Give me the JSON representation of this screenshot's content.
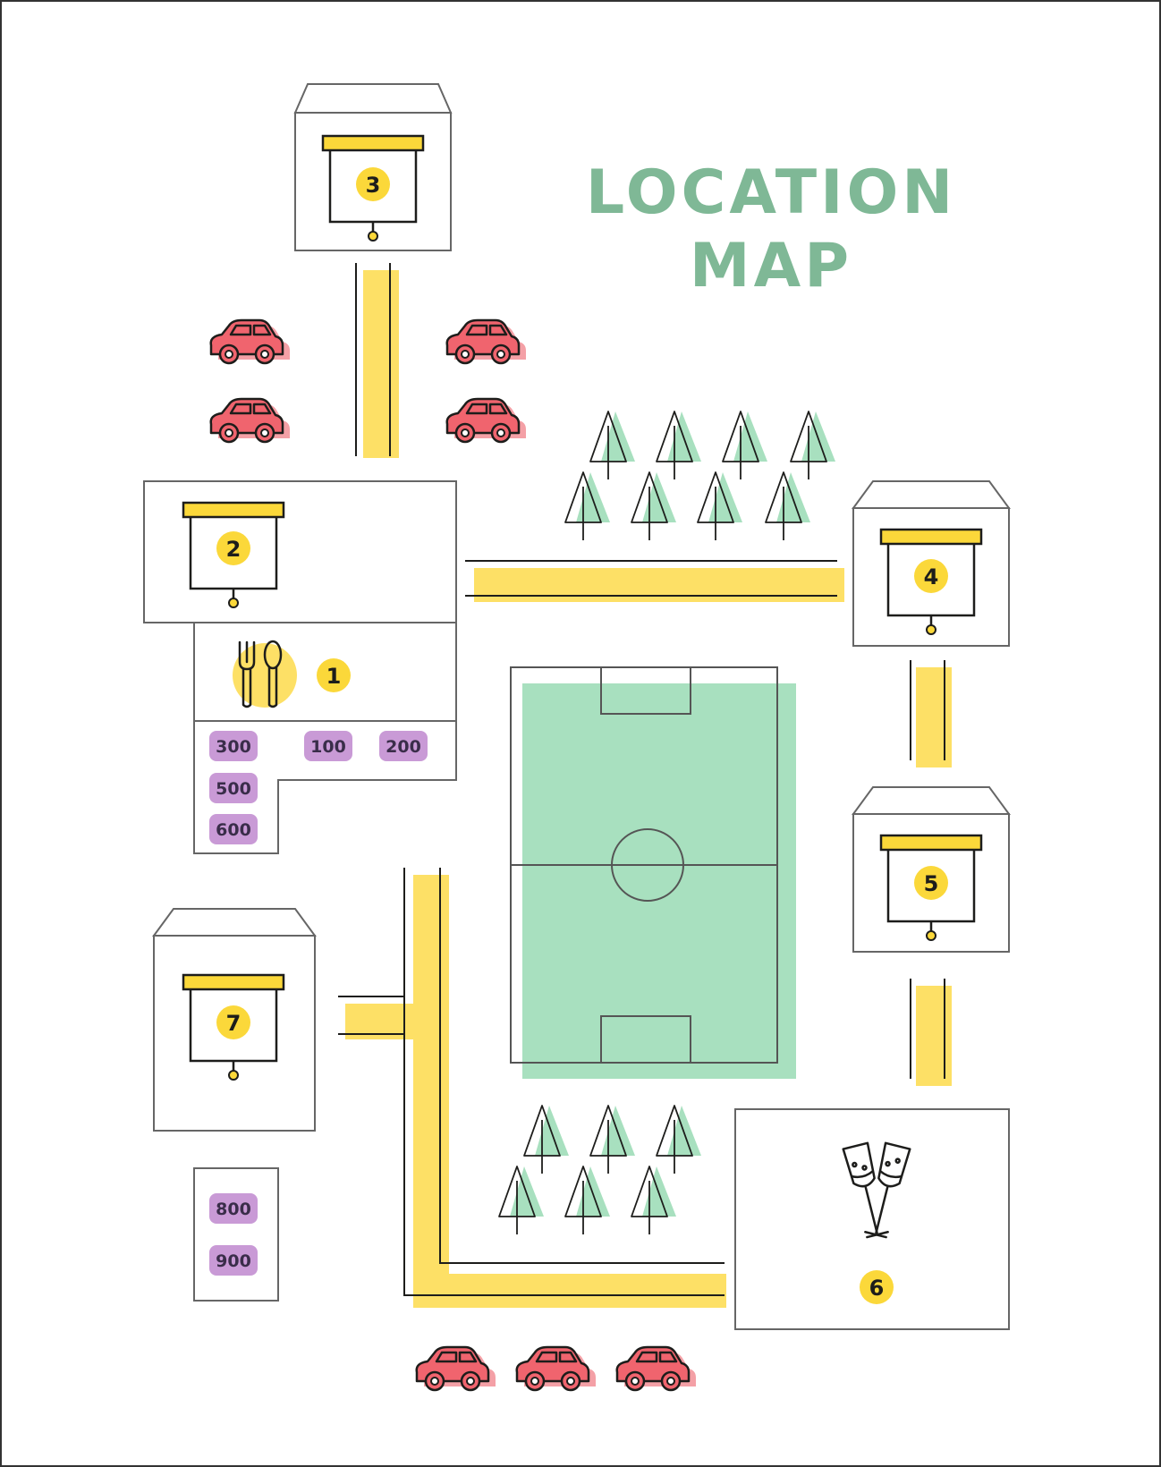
{
  "title": {
    "line1": "LOCATION",
    "line2": "MAP"
  },
  "colors": {
    "road": "#fde066",
    "field": "#a8e0bf",
    "car": "#f0646e",
    "car_shadow": "#f4a0a6",
    "badge": "#c99ad6",
    "number_circle": "#fbd83a",
    "outline": "#666666",
    "title": "#7fb896"
  },
  "locations": [
    {
      "number": "1",
      "type": "restaurant",
      "icon": "cutlery-icon"
    },
    {
      "number": "2",
      "type": "presentation-hall",
      "icon": "projector-screen-icon"
    },
    {
      "number": "3",
      "type": "presentation-hall",
      "icon": "projector-screen-icon"
    },
    {
      "number": "4",
      "type": "presentation-hall",
      "icon": "projector-screen-icon"
    },
    {
      "number": "5",
      "type": "presentation-hall",
      "icon": "projector-screen-icon"
    },
    {
      "number": "6",
      "type": "bar",
      "icon": "champagne-glasses-icon"
    },
    {
      "number": "7",
      "type": "presentation-hall",
      "icon": "projector-screen-icon"
    }
  ],
  "room_badges": {
    "group_a": [
      "300",
      "100",
      "200",
      "500",
      "600"
    ],
    "group_b": [
      "800",
      "900"
    ]
  },
  "features": {
    "parking_spaces": 7,
    "trees_north": 8,
    "trees_south": 6,
    "football_field": true
  }
}
